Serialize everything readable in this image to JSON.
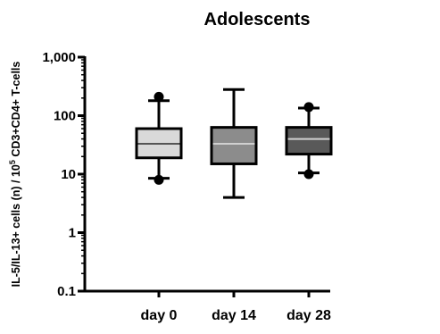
{
  "chart_data": {
    "type": "box",
    "title": "Adolescents",
    "xlabel": "",
    "ylabel": {
      "prefix": "IL-5/IL-13+ cells (n) / 10",
      "superscript": "5",
      "suffix": " CD3+CD4+ T-cells"
    },
    "y_scale": "log",
    "ylim": [
      0.1,
      1000
    ],
    "y_ticks": [
      {
        "value": 0.1,
        "label": "0.1"
      },
      {
        "value": 1,
        "label": "1"
      },
      {
        "value": 10,
        "label": "10"
      },
      {
        "value": 100,
        "label": "100"
      },
      {
        "value": 1000,
        "label": "1,000"
      }
    ],
    "categories": [
      "day 0",
      "day 14",
      "day 28"
    ],
    "series": [
      {
        "category": "day 0",
        "color": "#d9d9d9",
        "whisker_low": 8.5,
        "q1": 19,
        "median": 33,
        "q3": 60,
        "whisker_high": 180,
        "outliers": [
          8,
          210
        ]
      },
      {
        "category": "day 14",
        "color": "#8c8c8c",
        "whisker_low": 4,
        "q1": 15,
        "median": 33,
        "q3": 63,
        "whisker_high": 280,
        "outliers": []
      },
      {
        "category": "day 28",
        "color": "#595959",
        "whisker_low": 10.5,
        "q1": 22,
        "median": 40,
        "q3": 63,
        "whisker_high": 135,
        "outliers": [
          10,
          140
        ]
      }
    ],
    "grid": false,
    "legend": "none"
  }
}
